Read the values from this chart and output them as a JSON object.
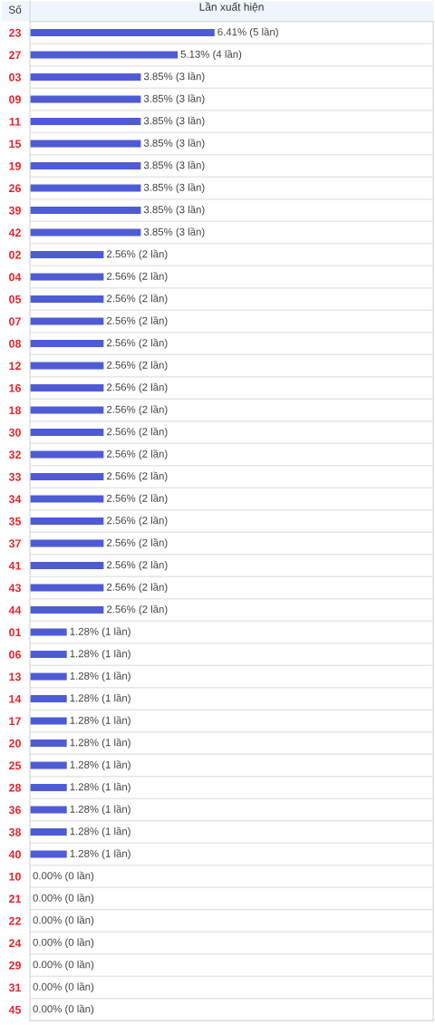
{
  "chart_data": {
    "type": "bar",
    "orientation": "horizontal",
    "xlabel": "Lần xuất hiện",
    "ylabel": "Số",
    "categories": [
      "23",
      "27",
      "03",
      "09",
      "11",
      "15",
      "19",
      "26",
      "39",
      "42",
      "02",
      "04",
      "05",
      "07",
      "08",
      "12",
      "16",
      "18",
      "30",
      "32",
      "33",
      "34",
      "35",
      "37",
      "41",
      "43",
      "44",
      "01",
      "06",
      "13",
      "14",
      "17",
      "20",
      "25",
      "28",
      "36",
      "38",
      "40",
      "10",
      "21",
      "22",
      "24",
      "29",
      "31",
      "45"
    ],
    "values": [
      6.41,
      5.13,
      3.85,
      3.85,
      3.85,
      3.85,
      3.85,
      3.85,
      3.85,
      3.85,
      2.56,
      2.56,
      2.56,
      2.56,
      2.56,
      2.56,
      2.56,
      2.56,
      2.56,
      2.56,
      2.56,
      2.56,
      2.56,
      2.56,
      2.56,
      2.56,
      2.56,
      1.28,
      1.28,
      1.28,
      1.28,
      1.28,
      1.28,
      1.28,
      1.28,
      1.28,
      1.28,
      1.28,
      0,
      0,
      0,
      0,
      0,
      0,
      0
    ],
    "value_labels": [
      "6.41% (5 lần)",
      "5.13% (4 lần)",
      "3.85% (3 lần)",
      "3.85% (3 lần)",
      "3.85% (3 lần)",
      "3.85% (3 lần)",
      "3.85% (3 lần)",
      "3.85% (3 lần)",
      "3.85% (3 lần)",
      "3.85% (3 lần)",
      "2.56% (2 lần)",
      "2.56% (2 lần)",
      "2.56% (2 lần)",
      "2.56% (2 lần)",
      "2.56% (2 lần)",
      "2.56% (2 lần)",
      "2.56% (2 lần)",
      "2.56% (2 lần)",
      "2.56% (2 lần)",
      "2.56% (2 lần)",
      "2.56% (2 lần)",
      "2.56% (2 lần)",
      "2.56% (2 lần)",
      "2.56% (2 lần)",
      "2.56% (2 lần)",
      "2.56% (2 lần)",
      "2.56% (2 lần)",
      "1.28% (1 lần)",
      "1.28% (1 lần)",
      "1.28% (1 lần)",
      "1.28% (1 lần)",
      "1.28% (1 lần)",
      "1.28% (1 lần)",
      "1.28% (1 lần)",
      "1.28% (1 lần)",
      "1.28% (1 lần)",
      "1.28% (1 lần)",
      "1.28% (1 lần)",
      "0.00% (0 lần)",
      "0.00% (0 lần)",
      "0.00% (0 lần)",
      "0.00% (0 lần)",
      "0.00% (0 lần)",
      "0.00% (0 lần)",
      "0.00% (0 lần)"
    ],
    "color": "#4f5bd5",
    "xlim": [
      0,
      14
    ],
    "tick_labels": "y",
    "grid": "y"
  }
}
